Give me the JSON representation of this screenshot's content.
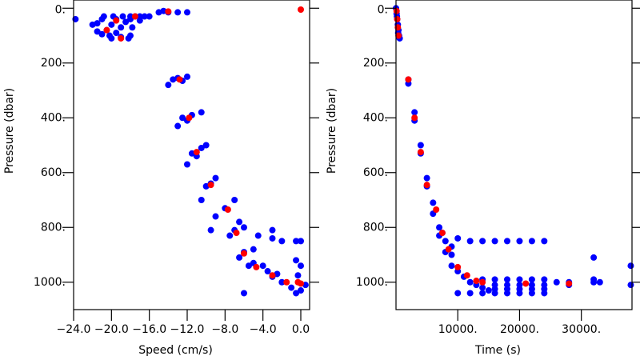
{
  "chart_data": [
    {
      "type": "scatter",
      "xlabel": "Speed (cm/s)",
      "ylabel": "Pressure (dbar)",
      "xlim": [
        -24,
        0.93
      ],
      "ylim": [
        -30,
        1100
      ],
      "y_inverted": true,
      "xticks": [
        {
          "value": -24,
          "label": "−24.0"
        },
        {
          "value": -20,
          "label": "−20.0"
        },
        {
          "value": -16,
          "label": "−16.0"
        },
        {
          "value": -12,
          "label": "−12.0"
        },
        {
          "value": -8,
          "label": "−8.0"
        },
        {
          "value": -4,
          "label": "−4.0"
        },
        {
          "value": 0,
          "label": "0.0"
        }
      ],
      "yticks": [
        {
          "value": 0,
          "label": "0."
        },
        {
          "value": 200,
          "label": "200."
        },
        {
          "value": 400,
          "label": "400."
        },
        {
          "value": 600,
          "label": "600."
        },
        {
          "value": 800,
          "label": "800."
        },
        {
          "value": 1000,
          "label": "1000."
        }
      ],
      "series": [
        {
          "color": "#0000ff",
          "x": [
            -23.8,
            -22,
            -21.5,
            -21,
            -20.5,
            -20.2,
            -20,
            -19.5,
            -19,
            -18.5,
            -18,
            -17.5,
            -17,
            -16.5,
            -20.8,
            -19.8,
            -18.8,
            -18,
            -17,
            -16,
            -15,
            -14,
            -13,
            -12,
            -14.5,
            -19,
            -18,
            -21,
            -20,
            -17.8,
            -18.2,
            -19.5,
            -21.5,
            -14,
            -13.5,
            -13,
            -12,
            -12.5,
            -13,
            -12.5,
            -11.5,
            -10.5,
            -12,
            -12,
            -11.5,
            -10.5,
            -10,
            -11,
            -10.5,
            -10,
            -9,
            -9.5,
            -9.5,
            -9,
            -8,
            -7,
            -6.5,
            -3,
            -7.5,
            -7,
            -6,
            -4.5,
            -3,
            -2,
            -6.5,
            -6,
            -5,
            -0.5,
            0,
            -6,
            -5.5,
            -5,
            -4,
            -3.5,
            -3,
            -2,
            -1,
            -0.5,
            0,
            0.5,
            -2.5,
            -0.5,
            0,
            -0.3
          ],
          "y": [
            40,
            60,
            55,
            40,
            80,
            100,
            110,
            90,
            70,
            50,
            40,
            30,
            45,
            30,
            30,
            30,
            30,
            30,
            30,
            30,
            15,
            15,
            15,
            15,
            10,
            105,
            100,
            95,
            60,
            70,
            110,
            40,
            85,
            280,
            260,
            255,
            250,
            265,
            430,
            400,
            390,
            380,
            410,
            570,
            530,
            510,
            500,
            540,
            700,
            650,
            620,
            640,
            810,
            760,
            730,
            700,
            780,
            810,
            830,
            810,
            800,
            830,
            840,
            850,
            910,
            890,
            880,
            850,
            850,
            1040,
            940,
            930,
            940,
            960,
            980,
            1000,
            1020,
            1040,
            1030,
            1010,
            970,
            920,
            940,
            975
          ]
        },
        {
          "color": "#ff0000",
          "x": [
            -20.5,
            -19.5,
            -19,
            -17.5,
            -14,
            0,
            -12.8,
            -11.8,
            -11,
            -9.5,
            -7.7,
            -6.8,
            -6,
            -4.7,
            -3,
            -1.5,
            -0.3,
            0
          ],
          "y": [
            80,
            45,
            110,
            30,
            12,
            5,
            260,
            400,
            525,
            645,
            735,
            820,
            895,
            945,
            975,
            1000,
            1000,
            1005
          ]
        }
      ]
    },
    {
      "type": "scatter",
      "xlabel": "Time (s)",
      "ylabel": "Pressure (dbar)",
      "xlim": [
        0,
        38200
      ],
      "ylim": [
        -30,
        1100
      ],
      "y_inverted": true,
      "xticks": [
        {
          "value": 10000,
          "label": "10000."
        },
        {
          "value": 20000,
          "label": "20000."
        },
        {
          "value": 30000,
          "label": "30000."
        }
      ],
      "yticks": [
        {
          "value": 0,
          "label": "0."
        },
        {
          "value": 200,
          "label": "200."
        },
        {
          "value": 400,
          "label": "400."
        },
        {
          "value": 600,
          "label": "600."
        },
        {
          "value": 800,
          "label": "800."
        },
        {
          "value": 1000,
          "label": "1000."
        }
      ],
      "series": [
        {
          "color": "#0000ff",
          "x": [
            0,
            100,
            200,
            300,
            400,
            500,
            600,
            150,
            350,
            450,
            2000,
            2000,
            3000,
            3000,
            4000,
            4000,
            5000,
            5000,
            6000,
            6000,
            7000,
            7000,
            8000,
            8000,
            9000,
            9000,
            10000,
            11000,
            12000,
            13000,
            14000,
            15000,
            10000,
            12000,
            14000,
            16000,
            18000,
            20000,
            22000,
            24000,
            14000,
            16000,
            18000,
            20000,
            22000,
            24000,
            26000,
            16000,
            18000,
            20000,
            22000,
            24000,
            16000,
            18000,
            20000,
            22000,
            24000,
            10000,
            12000,
            14000,
            16000,
            18000,
            20000,
            22000,
            24000,
            28000,
            28000,
            32000,
            32000,
            32000,
            33000,
            38000,
            38000,
            7500,
            9000
          ],
          "y": [
            0,
            20,
            40,
            60,
            80,
            100,
            110,
            30,
            90,
            105,
            260,
            275,
            380,
            410,
            500,
            530,
            620,
            650,
            710,
            750,
            800,
            830,
            850,
            890,
            900,
            940,
            960,
            980,
            1000,
            1010,
            1020,
            1030,
            1040,
            1040,
            1040,
            1040,
            1040,
            1040,
            1040,
            1040,
            990,
            990,
            990,
            990,
            990,
            990,
            1000,
            1010,
            1010,
            1010,
            1010,
            1010,
            1025,
            1025,
            1025,
            1025,
            1025,
            840,
            850,
            850,
            850,
            850,
            850,
            850,
            850,
            1000,
            1010,
            910,
            990,
            1000,
            1000,
            1010,
            940,
            820,
            870
          ]
        },
        {
          "color": "#ff0000",
          "x": [
            100,
            200,
            300,
            400,
            2000,
            3000,
            4000,
            5000,
            6500,
            7500,
            8500,
            10000,
            11500,
            13000,
            14000,
            21000,
            28000
          ],
          "y": [
            10,
            40,
            70,
            100,
            260,
            400,
            525,
            645,
            735,
            820,
            880,
            945,
            975,
            995,
            1000,
            1005,
            1005
          ]
        }
      ]
    }
  ]
}
